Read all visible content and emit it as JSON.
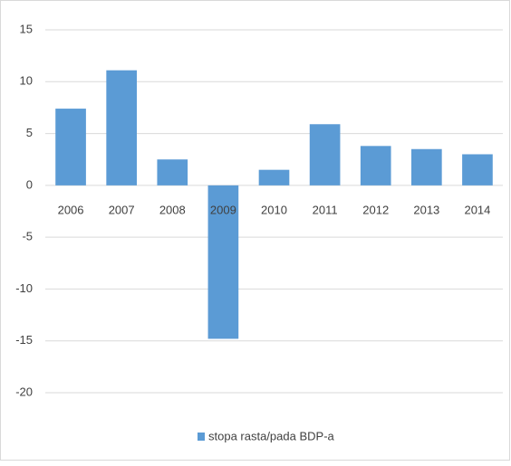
{
  "chart_data": {
    "type": "bar",
    "categories": [
      "2006",
      "2007",
      "2008",
      "2009",
      "2010",
      "2011",
      "2012",
      "2013",
      "2014"
    ],
    "series": [
      {
        "name": "stopa rasta/pada BDP-a",
        "color": "#5b9bd5",
        "values": [
          7.4,
          11.1,
          2.5,
          -14.8,
          1.5,
          5.9,
          3.8,
          3.5,
          3.0
        ]
      }
    ],
    "ylim": [
      -20,
      15
    ],
    "yticks": [
      15,
      10,
      5,
      0,
      -5,
      -10,
      -15,
      -20
    ],
    "grid": true,
    "legend": "bottom"
  }
}
